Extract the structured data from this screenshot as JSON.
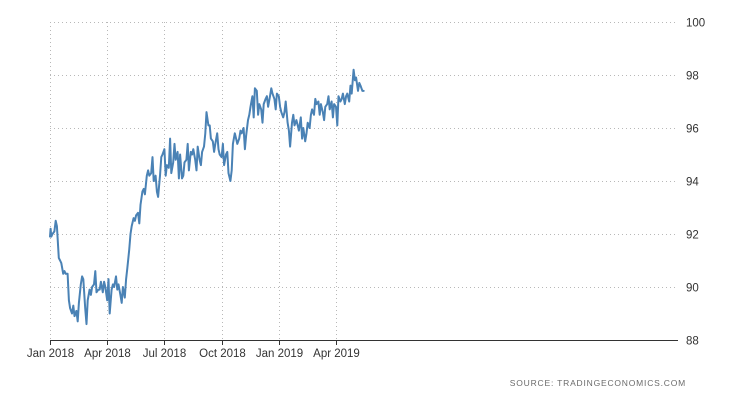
{
  "chart_data": {
    "type": "line",
    "title": "",
    "xlabel": "",
    "ylabel": "",
    "x_ticks": [
      {
        "date": "2018-01-01",
        "label": "Jan 2018"
      },
      {
        "date": "2018-04-01",
        "label": "Apr 2018"
      },
      {
        "date": "2018-07-01",
        "label": "Jul 2018"
      },
      {
        "date": "2018-10-01",
        "label": "Oct 2018"
      },
      {
        "date": "2019-01-01",
        "label": "Jan 2019"
      },
      {
        "date": "2019-04-01",
        "label": "Apr 2019"
      }
    ],
    "y_ticks": [
      "88",
      "90",
      "92",
      "94",
      "96",
      "98",
      "100"
    ],
    "xlim": [
      "2018-01-01",
      "2019-05-15"
    ],
    "ylim": [
      88,
      100
    ],
    "y_axis_side": "right",
    "grid": true,
    "series_color": "#4a82b5",
    "series": [
      {
        "x": [
          "2018-01-01",
          "2018-01-02",
          "2018-01-03",
          "2018-01-05",
          "2018-01-08",
          "2018-01-10",
          "2018-01-12",
          "2018-01-15",
          "2018-01-17",
          "2018-01-19",
          "2018-01-22",
          "2018-01-24",
          "2018-01-26",
          "2018-01-29",
          "2018-01-31",
          "2018-02-02",
          "2018-02-05",
          "2018-02-07",
          "2018-02-09",
          "2018-02-12",
          "2018-02-14",
          "2018-02-16",
          "2018-02-19",
          "2018-02-21",
          "2018-02-23",
          "2018-02-26",
          "2018-02-28",
          "2018-03-02",
          "2018-03-05",
          "2018-03-07",
          "2018-03-09",
          "2018-03-12",
          "2018-03-14",
          "2018-03-16",
          "2018-03-19",
          "2018-03-21",
          "2018-03-23",
          "2018-03-26",
          "2018-03-28",
          "2018-03-30",
          "2018-04-02",
          "2018-04-04",
          "2018-04-06",
          "2018-04-09",
          "2018-04-11",
          "2018-04-13",
          "2018-04-16",
          "2018-04-18",
          "2018-04-20",
          "2018-04-23",
          "2018-04-25",
          "2018-04-27",
          "2018-04-30",
          "2018-05-02",
          "2018-05-04",
          "2018-05-07",
          "2018-05-09",
          "2018-05-11",
          "2018-05-14",
          "2018-05-16",
          "2018-05-18",
          "2018-05-21",
          "2018-05-23",
          "2018-05-25",
          "2018-05-28",
          "2018-05-30",
          "2018-06-01",
          "2018-06-04",
          "2018-06-06",
          "2018-06-08",
          "2018-06-11",
          "2018-06-13",
          "2018-06-15",
          "2018-06-18",
          "2018-06-20",
          "2018-06-22",
          "2018-06-25",
          "2018-06-27",
          "2018-06-29",
          "2018-07-02",
          "2018-07-04",
          "2018-07-06",
          "2018-07-09",
          "2018-07-11",
          "2018-07-13",
          "2018-07-16",
          "2018-07-18",
          "2018-07-20",
          "2018-07-23",
          "2018-07-25",
          "2018-07-27",
          "2018-07-30",
          "2018-08-01",
          "2018-08-03",
          "2018-08-06",
          "2018-08-08",
          "2018-08-10",
          "2018-08-13",
          "2018-08-15",
          "2018-08-17",
          "2018-08-20",
          "2018-08-22",
          "2018-08-24",
          "2018-08-27",
          "2018-08-29",
          "2018-08-31",
          "2018-09-03",
          "2018-09-05",
          "2018-09-07",
          "2018-09-10",
          "2018-09-12",
          "2018-09-14",
          "2018-09-17",
          "2018-09-19",
          "2018-09-21",
          "2018-09-24",
          "2018-09-26",
          "2018-09-28",
          "2018-10-01",
          "2018-10-03",
          "2018-10-05",
          "2018-10-08",
          "2018-10-10",
          "2018-10-12",
          "2018-10-15",
          "2018-10-17",
          "2018-10-19",
          "2018-10-22",
          "2018-10-24",
          "2018-10-26",
          "2018-10-29",
          "2018-10-31",
          "2018-11-02",
          "2018-11-05",
          "2018-11-07",
          "2018-11-09",
          "2018-11-12",
          "2018-11-14",
          "2018-11-16",
          "2018-11-19",
          "2018-11-21",
          "2018-11-23",
          "2018-11-26",
          "2018-11-28",
          "2018-11-30",
          "2018-12-03",
          "2018-12-05",
          "2018-12-07",
          "2018-12-10",
          "2018-12-12",
          "2018-12-14",
          "2018-12-17",
          "2018-12-19",
          "2018-12-21",
          "2018-12-24",
          "2018-12-26",
          "2018-12-28",
          "2018-12-31",
          "2019-01-02",
          "2019-01-04",
          "2019-01-07",
          "2019-01-09",
          "2019-01-11",
          "2019-01-14",
          "2019-01-16",
          "2019-01-18",
          "2019-01-21",
          "2019-01-23",
          "2019-01-25",
          "2019-01-28",
          "2019-01-30",
          "2019-02-01",
          "2019-02-04",
          "2019-02-06",
          "2019-02-08",
          "2019-02-11",
          "2019-02-13",
          "2019-02-15",
          "2019-02-18",
          "2019-02-20",
          "2019-02-22",
          "2019-02-25",
          "2019-02-27",
          "2019-03-01",
          "2019-03-04",
          "2019-03-06",
          "2019-03-08",
          "2019-03-11",
          "2019-03-13",
          "2019-03-15",
          "2019-03-18",
          "2019-03-20",
          "2019-03-22",
          "2019-03-25",
          "2019-03-27",
          "2019-03-29",
          "2019-04-01",
          "2019-04-03",
          "2019-04-05",
          "2019-04-08",
          "2019-04-10",
          "2019-04-12",
          "2019-04-15",
          "2019-04-17",
          "2019-04-19",
          "2019-04-22",
          "2019-04-24",
          "2019-04-26",
          "2019-04-29",
          "2019-05-01",
          "2019-05-03",
          "2019-05-06",
          "2019-05-08",
          "2019-05-10",
          "2019-05-13",
          "2019-05-15"
        ],
        "values": [
          91.9,
          92.2,
          91.9,
          92.0,
          92.1,
          92.5,
          92.3,
          91.1,
          91.0,
          90.9,
          90.5,
          90.6,
          90.5,
          90.5,
          89.5,
          89.2,
          89.0,
          89.3,
          88.9,
          89.1,
          88.7,
          89.4,
          90.1,
          90.4,
          90.3,
          89.2,
          88.6,
          89.5,
          89.9,
          89.7,
          90.0,
          90.1,
          90.6,
          89.8,
          89.9,
          89.9,
          90.2,
          89.8,
          90.2,
          90.0,
          89.5,
          90.3,
          89.0,
          89.9,
          90.1,
          90.0,
          90.4,
          89.9,
          90.1,
          89.7,
          89.4,
          90.0,
          89.6,
          90.3,
          90.7,
          91.4,
          92.0,
          92.3,
          92.6,
          92.5,
          92.7,
          92.8,
          92.4,
          93.1,
          93.6,
          93.7,
          93.5,
          94.2,
          94.4,
          94.2,
          94.3,
          94.9,
          94.0,
          94.2,
          93.6,
          93.4,
          94.2,
          94.9,
          95.0,
          95.2,
          94.2,
          94.6,
          94.5,
          95.6,
          94.3,
          94.7,
          95.4,
          94.8,
          95.1,
          94.1,
          95.0,
          94.1,
          94.2,
          94.7,
          94.8,
          95.4,
          94.4,
          95.1,
          95.0,
          95.2,
          94.8,
          94.4,
          95.3,
          94.8,
          94.6,
          95.1,
          95.3,
          95.8,
          96.6,
          96.1,
          96.1,
          95.6,
          95.5,
          95.1,
          95.4,
          95.8,
          95.2,
          95.0,
          94.9,
          95.4,
          94.6,
          95.0,
          95.1,
          94.3,
          94.0,
          94.4,
          95.4,
          95.8,
          95.6,
          95.4,
          95.6,
          95.9,
          95.8,
          96.0,
          95.2,
          95.7,
          96.3,
          96.5,
          96.8,
          97.2,
          96.4,
          97.5,
          97.4,
          96.5,
          96.9,
          96.7,
          96.2,
          96.9,
          97.1,
          97.2,
          96.8,
          97.2,
          97.5,
          97.3,
          97.1,
          96.7,
          97.3,
          97.2,
          96.8,
          96.6,
          96.4,
          96.6,
          97.0,
          96.2,
          95.9,
          95.3,
          96.2,
          96.5,
          96.1,
          96.3,
          96.1,
          95.9,
          96.4,
          95.6,
          96.0,
          95.5,
          95.8,
          96.2,
          96.0,
          96.5,
          96.7,
          96.5,
          97.1,
          96.9,
          97.0,
          96.5,
          96.9,
          96.6,
          96.3,
          96.8,
          96.9,
          97.2,
          96.7,
          97.0,
          96.4,
          96.9,
          96.8,
          96.1,
          97.2,
          97.0,
          97.1,
          97.3,
          96.9,
          97.2,
          97.3,
          97.0,
          97.6,
          97.3,
          98.2,
          97.8,
          97.9,
          97.4,
          97.7,
          97.6,
          97.4,
          97.4
        ]
      }
    ],
    "source_label": "SOURCE:  TRADINGECONOMICS.COM"
  }
}
